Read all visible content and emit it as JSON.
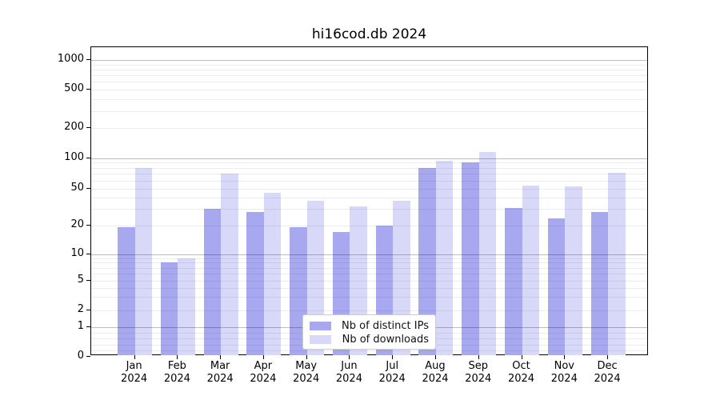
{
  "title": "hi16cod.db 2024",
  "chart_data": {
    "type": "bar",
    "title": "hi16cod.db 2024",
    "xlabel": "",
    "ylabel": "",
    "y_scale": "log",
    "grid": "on",
    "legend_position": "bottom-center",
    "year": "2024",
    "categories": [
      "Jan",
      "Feb",
      "Mar",
      "Apr",
      "May",
      "Jun",
      "Jul",
      "Aug",
      "Sep",
      "Oct",
      "Nov",
      "Dec"
    ],
    "y_ticks": [
      0,
      1,
      2,
      5,
      10,
      20,
      50,
      100,
      200,
      500,
      1000
    ],
    "ylim": [
      0,
      1400
    ],
    "series": [
      {
        "name": "Nb of distinct IPs",
        "color": "#a8a8f1",
        "values": [
          19,
          8,
          30,
          28,
          19,
          17,
          20,
          80,
          90,
          31,
          24,
          28
        ]
      },
      {
        "name": "Nb of downloads",
        "color": "#d8d8f9",
        "values": [
          80,
          9,
          70,
          45,
          37,
          32,
          37,
          94,
          115,
          54,
          53,
          72
        ]
      }
    ]
  },
  "legend": {
    "items": [
      {
        "label": "Nb of distinct IPs"
      },
      {
        "label": "Nb of downloads"
      }
    ]
  }
}
